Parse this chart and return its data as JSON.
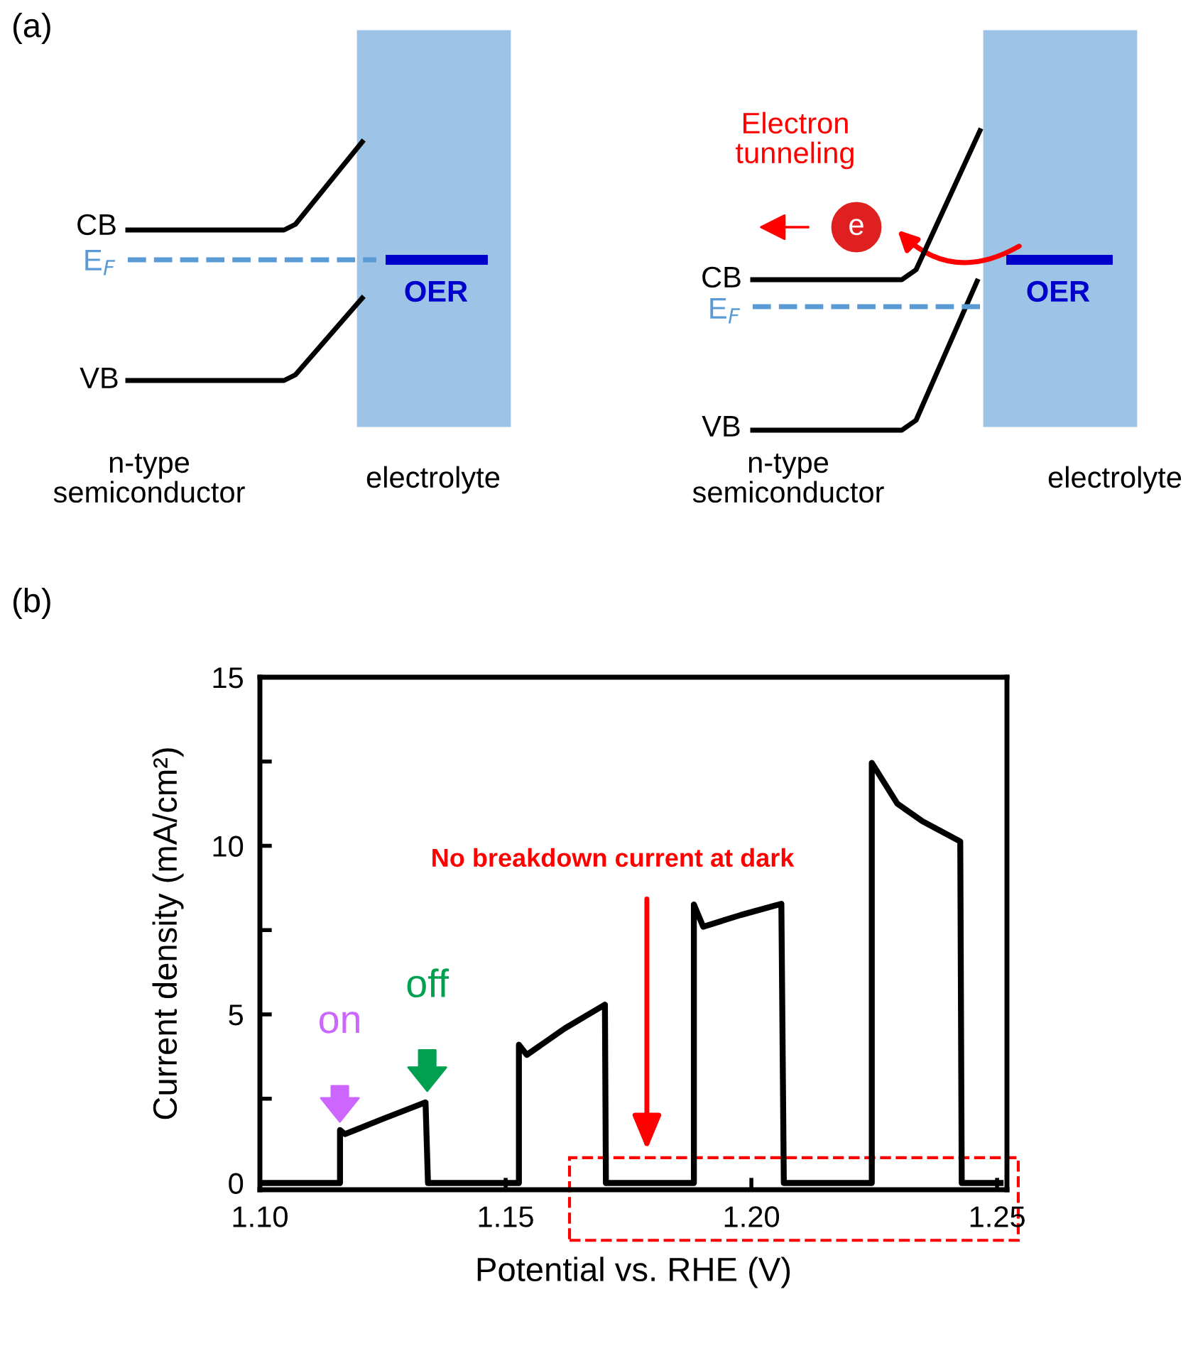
{
  "chart_data": [
    {
      "type": "other",
      "title": "(a)",
      "annotations": [
        "CB",
        "E$_{F}$",
        "VB",
        "OER",
        "n-type\nsemiconductor",
        "electrolyte",
        "Electron\ntunneling",
        "e",
        "CB",
        "E$_{F}$",
        "OER",
        "VB",
        "n-type\nsemiconductor",
        "electrolyte"
      ]
    },
    {
      "type": "line",
      "title": "(b)",
      "xlabel": "Potential vs. RHE (V)",
      "ylabel": "Current density (mA/cm²)",
      "color": "#000000",
      "x": [
        1.1002,
        1.1163,
        1.1163,
        1.1173,
        1.125,
        1.1337,
        1.1342,
        1.1527,
        1.1527,
        1.1543,
        1.162,
        1.1702,
        1.1704,
        1.1883,
        1.1883,
        1.1902,
        1.1979,
        1.2061,
        1.2066,
        1.2245,
        1.2245,
        1.2297,
        1.2348,
        1.2425,
        1.2428,
        1.2507
      ],
      "values": [
        0,
        0,
        1.57,
        1.45,
        1.9,
        2.39,
        0,
        0,
        4.1,
        3.8,
        4.58,
        5.29,
        0,
        0,
        8.26,
        7.6,
        7.95,
        8.28,
        0,
        0,
        12.46,
        11.25,
        10.73,
        10.13,
        0,
        0
      ],
      "xlim": [
        1.1,
        1.252
      ],
      "ylim": [
        -0.2,
        15
      ],
      "xticks": [
        {
          "value": 1.1,
          "label": "1.10"
        },
        {
          "value": 1.15,
          "label": "1.15"
        },
        {
          "value": 1.2,
          "label": "1.20"
        },
        {
          "value": 1.25,
          "label": "1.25"
        }
      ],
      "yticks": [
        0,
        {
          "value": 2.5,
          "label": null
        },
        5,
        {
          "value": 7.5,
          "label": null
        },
        10,
        {
          "value": 12.5,
          "label": null
        },
        15
      ],
      "annotations": [
        "on",
        "off",
        "No breakdown current at dark"
      ]
    }
  ]
}
